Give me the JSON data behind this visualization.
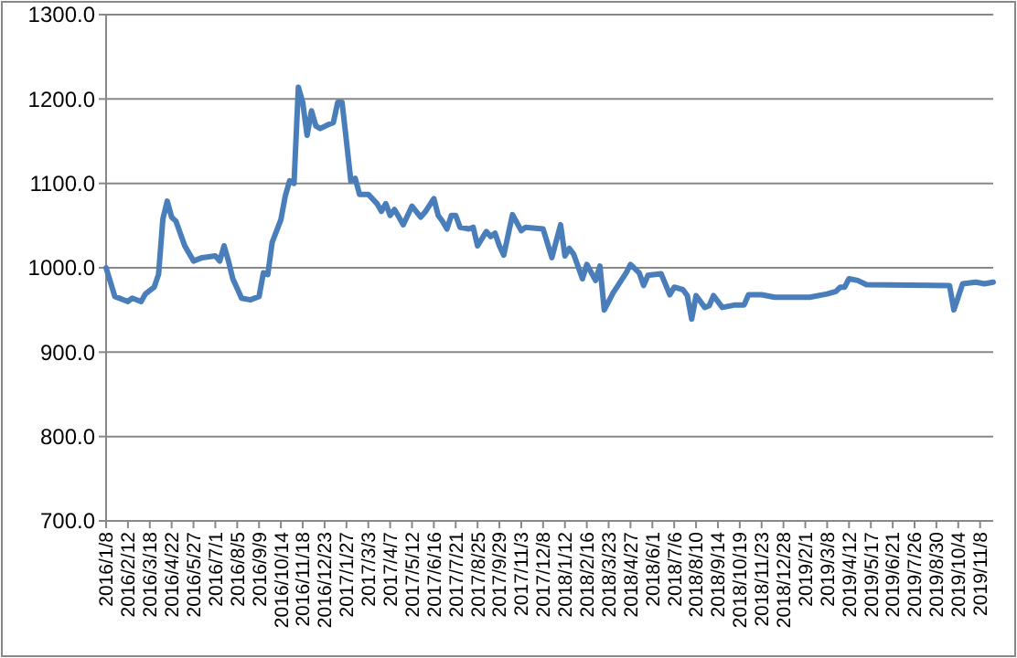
{
  "chart_data": {
    "type": "line",
    "color": "#4a7ebb",
    "grid": "y",
    "marker": "none",
    "line_style": "solid",
    "x": [
      "2016-01-08",
      "2016-01-22",
      "2016-02-12",
      "2016-02-19",
      "2016-03-04",
      "2016-03-11",
      "2016-03-25",
      "2016-04-01",
      "2016-04-08",
      "2016-04-15",
      "2016-04-22",
      "2016-04-29",
      "2016-05-13",
      "2016-05-27",
      "2016-06-10",
      "2016-07-01",
      "2016-07-08",
      "2016-07-15",
      "2016-07-22",
      "2016-07-29",
      "2016-08-12",
      "2016-08-26",
      "2016-09-09",
      "2016-09-16",
      "2016-09-23",
      "2016-09-30",
      "2016-10-14",
      "2016-10-21",
      "2016-10-28",
      "2016-11-04",
      "2016-11-11",
      "2016-11-18",
      "2016-11-25",
      "2016-12-02",
      "2016-12-09",
      "2016-12-16",
      "2016-12-30",
      "2017-01-06",
      "2017-01-13",
      "2017-01-20",
      "2017-01-27",
      "2017-02-03",
      "2017-02-10",
      "2017-02-17",
      "2017-03-03",
      "2017-03-17",
      "2017-03-24",
      "2017-03-31",
      "2017-04-07",
      "2017-04-14",
      "2017-04-21",
      "2017-04-28",
      "2017-05-12",
      "2017-05-26",
      "2017-06-02",
      "2017-06-16",
      "2017-06-23",
      "2017-06-30",
      "2017-07-07",
      "2017-07-14",
      "2017-07-21",
      "2017-07-28",
      "2017-08-11",
      "2017-08-18",
      "2017-08-25",
      "2017-09-08",
      "2017-09-15",
      "2017-09-22",
      "2017-09-29",
      "2017-10-06",
      "2017-10-20",
      "2017-11-03",
      "2017-11-10",
      "2017-12-08",
      "2017-12-22",
      "2018-01-05",
      "2018-01-12",
      "2018-01-19",
      "2018-01-26",
      "2018-02-09",
      "2018-02-16",
      "2018-03-02",
      "2018-03-09",
      "2018-03-16",
      "2018-03-30",
      "2018-04-20",
      "2018-04-27",
      "2018-05-11",
      "2018-05-18",
      "2018-05-25",
      "2018-06-15",
      "2018-06-29",
      "2018-07-06",
      "2018-07-20",
      "2018-07-27",
      "2018-08-03",
      "2018-08-10",
      "2018-08-24",
      "2018-08-31",
      "2018-09-07",
      "2018-09-21",
      "2018-10-12",
      "2018-10-26",
      "2018-11-02",
      "2018-11-23",
      "2018-12-14",
      "2019-02-08",
      "2019-03-08",
      "2019-03-22",
      "2019-03-29",
      "2019-04-05",
      "2019-04-12",
      "2019-04-26",
      "2019-05-10",
      "2019-09-20",
      "2019-09-27",
      "2019-10-11",
      "2019-11-01",
      "2019-11-15",
      "2019-11-29"
    ],
    "values": [
      1000,
      966,
      960,
      964,
      960,
      969,
      977,
      992,
      1058,
      1079,
      1060,
      1055,
      1026,
      1008,
      1012,
      1014,
      1008,
      1026,
      1008,
      987,
      964,
      962,
      966,
      994,
      992,
      1030,
      1057,
      1085,
      1103,
      1100,
      1214,
      1196,
      1157,
      1186,
      1168,
      1165,
      1170,
      1172,
      1196,
      1196,
      1150,
      1103,
      1106,
      1087,
      1087,
      1076,
      1067,
      1076,
      1062,
      1069,
      1060,
      1051,
      1073,
      1060,
      1066,
      1082,
      1062,
      1055,
      1046,
      1062,
      1062,
      1048,
      1046,
      1048,
      1026,
      1043,
      1037,
      1041,
      1026,
      1015,
      1063,
      1044,
      1048,
      1046,
      1012,
      1051,
      1014,
      1023,
      1016,
      987,
      1004,
      985,
      1002,
      950,
      970,
      994,
      1004,
      994,
      979,
      991,
      993,
      968,
      977,
      974,
      967,
      939,
      967,
      953,
      955,
      967,
      953,
      956,
      956,
      968,
      968,
      965,
      965,
      969,
      972,
      977,
      977,
      987,
      985,
      980,
      979,
      950,
      981,
      983,
      981,
      983
    ],
    "xlim": [
      "2016-01-08",
      "2019-11-29"
    ],
    "xticks": [
      {
        "value": "2016-01-08",
        "label": "2016/1/8"
      },
      {
        "value": "2016-02-12",
        "label": "2016/2/12"
      },
      {
        "value": "2016-03-18",
        "label": "2016/3/18"
      },
      {
        "value": "2016-04-22",
        "label": "2016/4/22"
      },
      {
        "value": "2016-05-27",
        "label": "2016/5/27"
      },
      {
        "value": "2016-07-01",
        "label": "2016/7/1"
      },
      {
        "value": "2016-08-05",
        "label": "2016/8/5"
      },
      {
        "value": "2016-09-09",
        "label": "2016/9/9"
      },
      {
        "value": "2016-10-14",
        "label": "2016/10/14"
      },
      {
        "value": "2016-11-18",
        "label": "2016/11/18"
      },
      {
        "value": "2016-12-23",
        "label": "2016/12/23"
      },
      {
        "value": "2017-01-27",
        "label": "2017/1/27"
      },
      {
        "value": "2017-03-03",
        "label": "2017/3/3"
      },
      {
        "value": "2017-04-07",
        "label": "2017/4/7"
      },
      {
        "value": "2017-05-12",
        "label": "2017/5/12"
      },
      {
        "value": "2017-06-16",
        "label": "2017/6/16"
      },
      {
        "value": "2017-07-21",
        "label": "2017/7/21"
      },
      {
        "value": "2017-08-25",
        "label": "2017/8/25"
      },
      {
        "value": "2017-09-29",
        "label": "2017/9/29"
      },
      {
        "value": "2017-11-03",
        "label": "2017/11/3"
      },
      {
        "value": "2017-12-08",
        "label": "2017/12/8"
      },
      {
        "value": "2018-01-12",
        "label": "2018/1/12"
      },
      {
        "value": "2018-02-16",
        "label": "2018/2/16"
      },
      {
        "value": "2018-03-23",
        "label": "2018/3/23"
      },
      {
        "value": "2018-04-27",
        "label": "2018/4/27"
      },
      {
        "value": "2018-06-01",
        "label": "2018/6/1"
      },
      {
        "value": "2018-07-06",
        "label": "2018/7/6"
      },
      {
        "value": "2018-08-10",
        "label": "2018/8/10"
      },
      {
        "value": "2018-09-14",
        "label": "2018/9/14"
      },
      {
        "value": "2018-10-19",
        "label": "2018/10/19"
      },
      {
        "value": "2018-11-23",
        "label": "2018/11/23"
      },
      {
        "value": "2018-12-28",
        "label": "2018/12/28"
      },
      {
        "value": "2019-02-01",
        "label": "2019/2/1"
      },
      {
        "value": "2019-03-08",
        "label": "2019/3/8"
      },
      {
        "value": "2019-04-12",
        "label": "2019/4/12"
      },
      {
        "value": "2019-05-17",
        "label": "2019/5/17"
      },
      {
        "value": "2019-06-21",
        "label": "2019/6/21"
      },
      {
        "value": "2019-07-26",
        "label": "2019/7/26"
      },
      {
        "value": "2019-08-30",
        "label": "2019/8/30"
      },
      {
        "value": "2019-10-04",
        "label": "2019/10/4"
      },
      {
        "value": "2019-11-08",
        "label": "2019/11/8"
      }
    ],
    "ylim": [
      700,
      1300
    ],
    "yticks": [
      {
        "value": 700,
        "label": "700.0"
      },
      {
        "value": 800,
        "label": "800.0"
      },
      {
        "value": 900,
        "label": "900.0"
      },
      {
        "value": 1000,
        "label": "1000.0"
      },
      {
        "value": 1100,
        "label": "1100.0"
      },
      {
        "value": 1200,
        "label": "1200.0"
      },
      {
        "value": 1300,
        "label": "1300.0"
      }
    ]
  }
}
